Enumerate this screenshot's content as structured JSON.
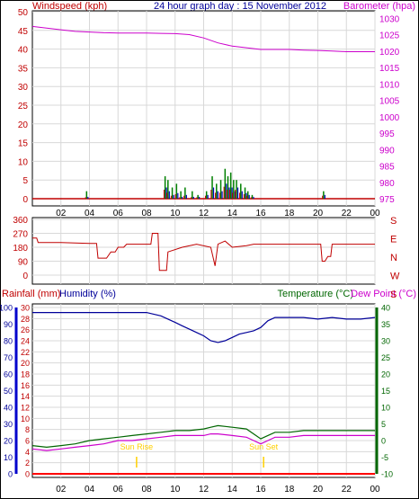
{
  "header": {
    "title": "24 hour graph day : 15 November 2012",
    "left_label": "Windspeed (kph)",
    "right_label": "Barometer (hpa)"
  },
  "bottom_header": {
    "rainfall_label": "Rainfall (mm)",
    "humidity_label": "Humidity (%)",
    "temperature_label": "Temperature (°C)",
    "dewpoint_label": "Dew Point (°C)"
  },
  "colors": {
    "frame": "#000000",
    "grid": "#d8d8d8",
    "wind": "#c00000",
    "gust": "#008000",
    "wind_avg": "#0000c0",
    "barometer": "#cc00cc",
    "direction": "#c00000",
    "humidity": "#000099",
    "temperature": "#006600",
    "dewpoint": "#cc00cc",
    "rain": "#ff0000",
    "sun": "#ffd000",
    "title": "#000099",
    "left_axis_bar": "#0000cc",
    "right_axis_bar": "#006600"
  },
  "chart_data": [
    {
      "type": "line",
      "name_text": "wind-barometer",
      "x_ticks": [
        "02",
        "04",
        "06",
        "08",
        "10",
        "12",
        "14",
        "16",
        "18",
        "20",
        "22",
        "00"
      ],
      "x_range": [
        0,
        24
      ],
      "left_axis": {
        "ticks": [
          "0",
          "5",
          "10",
          "15",
          "20",
          "25",
          "30",
          "35",
          "40",
          "45",
          "50"
        ],
        "range": [
          0,
          50
        ]
      },
      "right_axis": {
        "ticks": [
          "975",
          "980",
          "985",
          "990",
          "995",
          "1000",
          "1005",
          "1010",
          "1015",
          "1020",
          "1025",
          "1030"
        ],
        "range": [
          975,
          1032
        ]
      },
      "barometer": {
        "x": [
          0,
          1,
          2,
          3,
          4,
          5,
          6,
          7,
          8,
          9,
          10,
          11,
          12,
          13,
          14,
          15,
          16,
          17,
          18,
          19,
          20,
          21,
          22,
          23,
          24
        ],
        "y": [
          1027.5,
          1027,
          1026.5,
          1026,
          1025.8,
          1025.6,
          1025.5,
          1025.5,
          1025.5,
          1025.4,
          1025.3,
          1025,
          1024,
          1022.5,
          1021.5,
          1021,
          1020.5,
          1020.5,
          1020.5,
          1020.3,
          1020.2,
          1020,
          1019.8,
          1019.8,
          1019.8
        ]
      },
      "wind_bars": {
        "x": [
          3.8,
          9.3,
          9.5,
          9.8,
          10.1,
          10.4,
          10.7,
          11.2,
          11.6,
          12.2,
          12.6,
          12.9,
          13.2,
          13.5,
          13.7,
          13.9,
          14.1,
          14.3,
          14.6,
          14.9,
          15.1,
          15.4,
          20.4
        ],
        "gust": [
          2,
          6,
          5,
          3,
          4,
          2,
          3,
          2,
          1,
          2,
          6,
          4,
          5,
          8,
          6,
          7,
          5,
          5,
          4,
          3,
          2,
          1,
          2
        ],
        "avg": [
          0.5,
          3,
          2,
          1,
          1.5,
          0.5,
          1,
          0.5,
          0.5,
          1,
          3,
          2,
          2,
          4,
          3,
          3,
          2,
          3,
          2,
          1.5,
          1,
          0.5,
          1
        ]
      }
    },
    {
      "type": "line",
      "name_text": "wind-direction",
      "x_ticks": [
        "02",
        "04",
        "06",
        "08",
        "10",
        "12",
        "14",
        "16",
        "18",
        "20",
        "22",
        "00"
      ],
      "x_range": [
        0,
        24
      ],
      "left_axis": {
        "ticks": [
          "360",
          "270",
          "180",
          "90",
          "0"
        ],
        "range": [
          0,
          360
        ]
      },
      "right_axis_labels": [
        "S",
        "E",
        "N",
        "W",
        "S"
      ],
      "direction": {
        "x": [
          0,
          0.3,
          0.4,
          2,
          4,
          4.5,
          4.6,
          5.2,
          5.5,
          5.8,
          6,
          6.4,
          6.6,
          8.3,
          8.4,
          8.8,
          8.9,
          9.4,
          9.5,
          10.5,
          11.5,
          12.5,
          12.8,
          13,
          13.5,
          14,
          15,
          15.5,
          16,
          17,
          18,
          19,
          20,
          20.2,
          20.3,
          20.5,
          20.7,
          20.9,
          21,
          22,
          23,
          24
        ],
        "y": [
          240,
          240,
          210,
          210,
          205,
          205,
          110,
          110,
          150,
          150,
          180,
          180,
          200,
          200,
          270,
          270,
          30,
          30,
          150,
          180,
          200,
          180,
          60,
          200,
          220,
          180,
          190,
          200,
          200,
          200,
          200,
          200,
          200,
          200,
          90,
          90,
          120,
          120,
          200,
          200,
          200,
          200
        ]
      }
    },
    {
      "type": "line",
      "name_text": "humidity-temperature",
      "x_ticks": [
        "02",
        "04",
        "06",
        "08",
        "10",
        "12",
        "14",
        "16",
        "18",
        "20",
        "22",
        "00"
      ],
      "x_range": [
        0,
        24
      ],
      "left_axis_rain": {
        "ticks": [
          "0",
          "2",
          "4",
          "6",
          "8",
          "10",
          "12",
          "14",
          "16",
          "18",
          "20",
          "22",
          "24",
          "26",
          "28",
          "30"
        ],
        "range": [
          0,
          30
        ]
      },
      "left_axis_humidity": {
        "ticks": [
          "0",
          "10",
          "20",
          "30",
          "40",
          "50",
          "60",
          "70",
          "80",
          "90",
          "100"
        ],
        "range": [
          0,
          100
        ]
      },
      "right_axis": {
        "ticks": [
          "-10",
          "-5",
          "0",
          "5",
          "10",
          "15",
          "20",
          "25",
          "30",
          "35",
          "40"
        ],
        "range": [
          -10,
          40
        ]
      },
      "humidity": {
        "x": [
          0,
          2,
          4,
          6,
          8,
          8.5,
          9,
          9.5,
          10,
          10.5,
          11,
          11.5,
          12,
          12.5,
          13,
          13.5,
          14,
          14.5,
          15,
          15.5,
          16,
          16.5,
          17,
          18,
          19,
          20,
          21,
          22,
          23,
          24
        ],
        "y": [
          97,
          97,
          97,
          97,
          97,
          96,
          95,
          93,
          91,
          89,
          87,
          85,
          83,
          80,
          79,
          80,
          82,
          84,
          85,
          86,
          88,
          92,
          94,
          94,
          94,
          93,
          94,
          93,
          93,
          94
        ]
      },
      "temperature": {
        "x": [
          0,
          1,
          2,
          3,
          4,
          5,
          6,
          7,
          8,
          9,
          10,
          11,
          12,
          12.5,
          13,
          14,
          15,
          15.5,
          16,
          16.5,
          17,
          18,
          19,
          20,
          21,
          22,
          23,
          24
        ],
        "y": [
          -1.5,
          -2,
          -1.5,
          -1,
          0,
          0.5,
          1,
          1.5,
          2,
          2.5,
          3,
          3,
          3.5,
          4,
          4.5,
          4,
          3.5,
          2,
          0.5,
          1.5,
          2.5,
          2.5,
          3,
          3,
          3,
          3,
          3,
          3
        ]
      },
      "dewpoint": {
        "x": [
          0,
          1,
          2,
          3,
          4,
          5,
          6,
          7,
          8,
          9,
          10,
          11,
          12,
          12.5,
          13,
          14,
          15,
          15.5,
          16,
          16.5,
          17,
          18,
          19,
          20,
          21,
          22,
          23,
          24
        ],
        "y": [
          -2.5,
          -3,
          -2.5,
          -2,
          -1.5,
          -1,
          0,
          0,
          0.5,
          1,
          1.5,
          1.5,
          1.5,
          2,
          2,
          1.5,
          1,
          0,
          -1,
          0,
          1,
          1,
          1.5,
          1.5,
          1.5,
          1.5,
          1.5,
          1.5
        ]
      },
      "rain": {
        "x": [
          0,
          24
        ],
        "y": [
          0,
          0
        ]
      },
      "sun_markers": [
        {
          "x": 7.3,
          "label": "Sun Rise"
        },
        {
          "x": 16.2,
          "label": "Sun Set"
        }
      ]
    }
  ]
}
